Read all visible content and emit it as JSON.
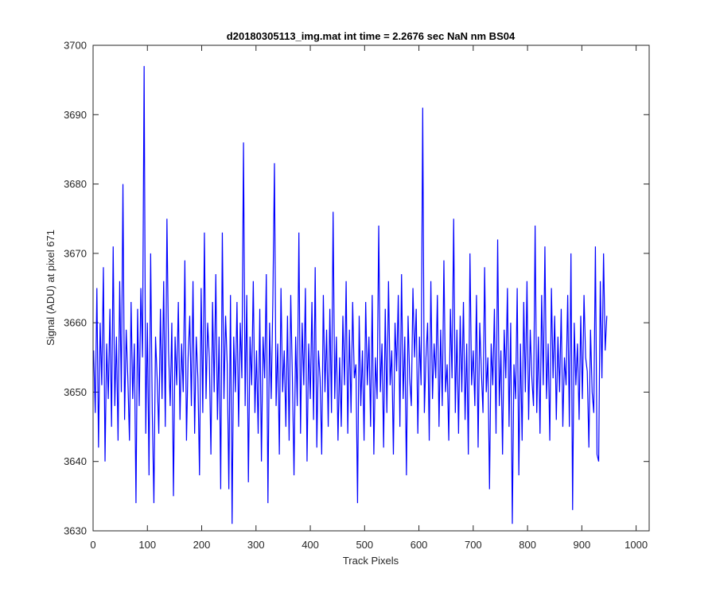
{
  "chart_data": {
    "type": "line",
    "title": "d20180305113_img.mat int time = 2.2676 sec  NaN nm BS04",
    "xlabel": "Track Pixels",
    "ylabel": "Signal (ADU) at pixel 671",
    "xlim": [
      0,
      1024
    ],
    "ylim": [
      3630,
      3700
    ],
    "xticks": [
      0,
      100,
      200,
      300,
      400,
      500,
      600,
      700,
      800,
      900,
      1000
    ],
    "yticks": [
      3630,
      3640,
      3650,
      3660,
      3670,
      3680,
      3690,
      3700
    ],
    "grid": false,
    "line_color": "#0000ff",
    "series": [
      {
        "x_start": 1,
        "x_step": 3,
        "values": [
          3656,
          3647,
          3665,
          3642,
          3660,
          3651,
          3668,
          3640,
          3657,
          3649,
          3662,
          3645,
          3671,
          3648,
          3658,
          3643,
          3666,
          3650,
          3680,
          3646,
          3659,
          3652,
          3643,
          3663,
          3649,
          3657,
          3634,
          3662,
          3648,
          3665,
          3655,
          3697,
          3644,
          3660,
          3638,
          3670,
          3647,
          3634,
          3658,
          3652,
          3644,
          3662,
          3649,
          3666,
          3645,
          3675,
          3656,
          3648,
          3660,
          3635,
          3658,
          3651,
          3663,
          3646,
          3657,
          3650,
          3669,
          3643,
          3655,
          3661,
          3648,
          3666,
          3644,
          3658,
          3652,
          3638,
          3665,
          3647,
          3673,
          3649,
          3660,
          3655,
          3641,
          3663,
          3650,
          3667,
          3646,
          3658,
          3636,
          3673,
          3649,
          3661,
          3654,
          3636,
          3664,
          3631,
          3658,
          3650,
          3663,
          3645,
          3660,
          3652,
          3686,
          3648,
          3664,
          3637,
          3658,
          3651,
          3666,
          3647,
          3656,
          3644,
          3662,
          3640,
          3658,
          3652,
          3667,
          3634,
          3660,
          3649,
          3663,
          3683,
          3648,
          3657,
          3641,
          3665,
          3650,
          3656,
          3645,
          3661,
          3643,
          3664,
          3652,
          3638,
          3658,
          3648,
          3673,
          3644,
          3660,
          3651,
          3665,
          3640,
          3657,
          3649,
          3663,
          3646,
          3668,
          3642,
          3656,
          3652,
          3641,
          3664,
          3650,
          3659,
          3645,
          3662,
          3647,
          3676,
          3649,
          3658,
          3643,
          3655,
          3645,
          3661,
          3651,
          3666,
          3644,
          3659,
          3647,
          3663,
          3652,
          3654,
          3634,
          3661,
          3648,
          3656,
          3643,
          3663,
          3651,
          3658,
          3645,
          3664,
          3641,
          3655,
          3649,
          3674,
          3650,
          3657,
          3642,
          3662,
          3647,
          3666,
          3651,
          3656,
          3641,
          3660,
          3653,
          3664,
          3645,
          3667,
          3649,
          3658,
          3638,
          3661,
          3652,
          3648,
          3665,
          3655,
          3662,
          3644,
          3658,
          3651,
          3691,
          3647,
          3655,
          3660,
          3643,
          3666,
          3649,
          3657,
          3652,
          3664,
          3645,
          3659,
          3648,
          3669,
          3650,
          3654,
          3643,
          3662,
          3652,
          3675,
          3647,
          3659,
          3644,
          3661,
          3650,
          3663,
          3646,
          3657,
          3641,
          3670,
          3651,
          3656,
          3648,
          3664,
          3642,
          3660,
          3653,
          3647,
          3668,
          3650,
          3655,
          3636,
          3657,
          3651,
          3662,
          3644,
          3672,
          3648,
          3656,
          3641,
          3659,
          3652,
          3665,
          3645,
          3660,
          3631,
          3654,
          3649,
          3665,
          3638,
          3657,
          3643,
          3663,
          3650,
          3666,
          3646,
          3659,
          3652,
          3648,
          3674,
          3647,
          3658,
          3644,
          3664,
          3651,
          3671,
          3649,
          3657,
          3643,
          3665,
          3652,
          3661,
          3646,
          3658,
          3650,
          3662,
          3645,
          3655,
          3651,
          3664,
          3645,
          3670,
          3633,
          3660,
          3651,
          3657,
          3646,
          3661,
          3649,
          3664,
          3655,
          3653,
          3642,
          3659,
          3650,
          3647,
          3671,
          3641,
          3640,
          3666,
          3652,
          3670,
          3656,
          3661
        ]
      }
    ]
  }
}
